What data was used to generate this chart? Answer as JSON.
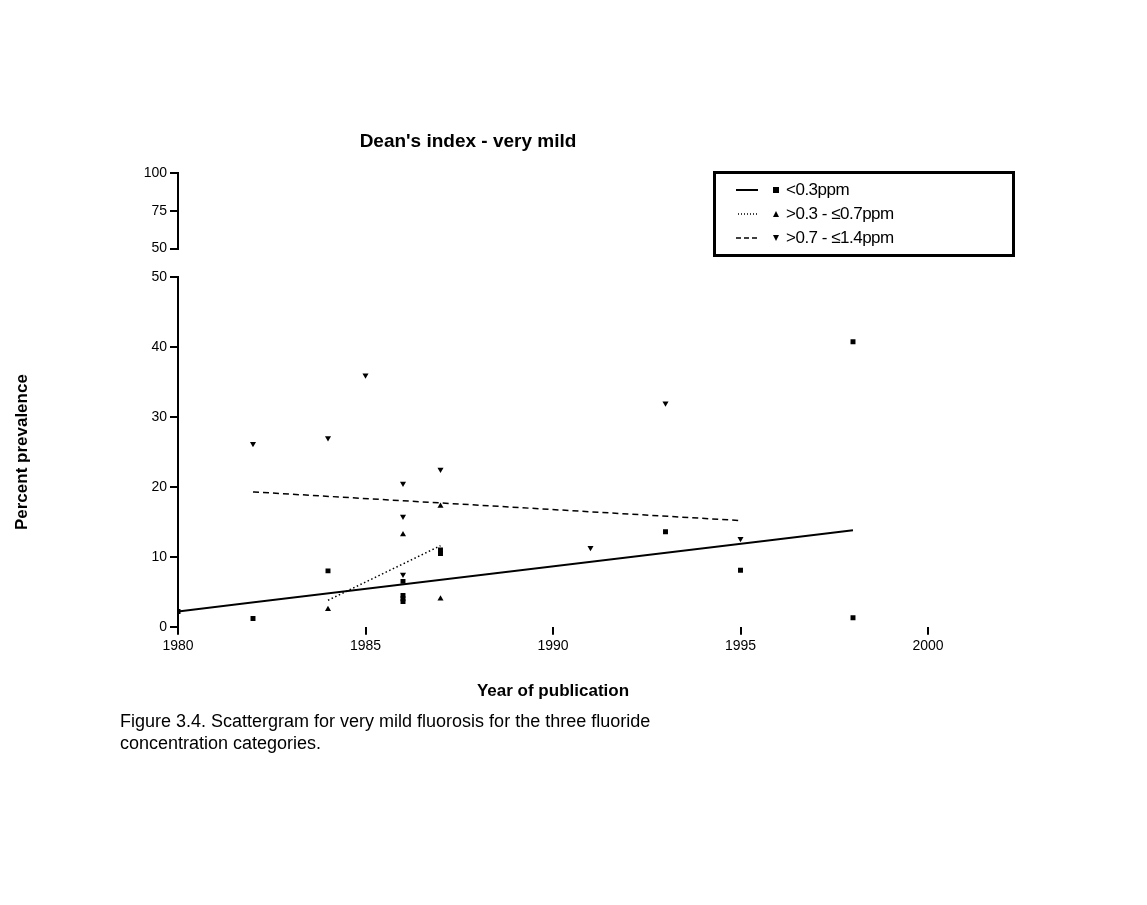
{
  "chart_data": [
    {
      "type": "scatter",
      "title": "Dean's index - very mild",
      "xlim": [
        1980,
        2000
      ],
      "ylim": [
        50,
        100
      ],
      "yticks": [
        50,
        75,
        100
      ],
      "tick_labels": "y",
      "grid": false
    },
    {
      "type": "scatter",
      "xlabel": "Year of publication",
      "ylabel": "Percent prevalence",
      "xlim": [
        1980,
        2000
      ],
      "xticks": [
        1980,
        1985,
        1990,
        1995,
        2000
      ],
      "ylim": [
        0,
        50
      ],
      "yticks": [
        0,
        10,
        20,
        30,
        40,
        50
      ],
      "grid": false,
      "legend": "top right",
      "annotations": [
        "Figure 3.4. Scattergram for very mild fluorosis for the three fluoride concentration categories."
      ],
      "series": [
        {
          "name": "<0.3ppm",
          "color": "#000000",
          "marker": "square",
          "x": [
            1980,
            1982,
            1984,
            1986,
            1986,
            1986,
            1986,
            1987,
            1987,
            1993,
            1995,
            1998,
            1998
          ],
          "values": [
            2.2,
            1.2,
            8,
            6.5,
            4.5,
            4,
            3.6,
            10.5,
            11,
            13.6,
            8.1,
            40.8,
            1.3
          ]
        },
        {
          "name": ">0.3 - ≤0.7ppm",
          "color": "#000000",
          "marker": "triangle",
          "x": [
            1984,
            1986,
            1987,
            1987
          ],
          "values": [
            2.5,
            13.2,
            17.3,
            4
          ]
        },
        {
          "name": ">0.7 - ≤1.4ppm",
          "color": "#000000",
          "marker": "triangle-down",
          "x": [
            1982,
            1984,
            1985,
            1986,
            1986,
            1986,
            1987,
            1991,
            1993,
            1995
          ],
          "values": [
            26.2,
            27,
            36,
            20.5,
            15.8,
            7.5,
            22.5,
            11.3,
            32,
            12.6
          ]
        },
        {
          "type": "line",
          "color": "#000000",
          "marker": "none",
          "line_style": "solid",
          "x": [
            1980,
            1998
          ],
          "values": [
            2.2,
            13.8
          ]
        },
        {
          "type": "line",
          "color": "#000000",
          "marker": "none",
          "line_style": "dotted",
          "x": [
            1984,
            1987
          ],
          "values": [
            3.8,
            11.6
          ]
        },
        {
          "type": "line",
          "color": "#000000",
          "marker": "none",
          "line_style": "dashed",
          "x": [
            1982,
            1995
          ],
          "values": [
            19.3,
            15.2
          ]
        }
      ]
    }
  ]
}
